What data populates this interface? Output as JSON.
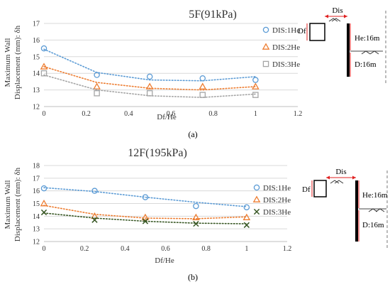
{
  "panels": [
    {
      "caption": "(a)",
      "chart_data": {
        "type": "scatter",
        "title": "5F(91kPa)",
        "xlabel": "Df/He",
        "ylabel_line1": "Maximum Wall",
        "ylabel_line2": "Displacement (mm): δh",
        "xlim": [
          0,
          1.2
        ],
        "ylim": [
          12,
          17
        ],
        "xticks": [
          "0",
          "0.2",
          "0.4",
          "0.6",
          "0.8",
          "1",
          "1.2"
        ],
        "yticks": [
          "12",
          "13",
          "14",
          "15",
          "16",
          "17"
        ],
        "grid": "horizontal",
        "legend_position": "right",
        "x": [
          0,
          0.25,
          0.5,
          0.75,
          1.0
        ],
        "series": [
          {
            "name": "DIS:1He",
            "marker": "circle",
            "color": "#5b9bd5",
            "values": [
              15.5,
              13.9,
              13.8,
              13.7,
              13.6
            ],
            "trend": [
              15.45,
              14.05,
              13.6,
              13.55,
              13.8
            ]
          },
          {
            "name": "DIS:2He",
            "marker": "triangle",
            "color": "#ed7d31",
            "values": [
              14.4,
              13.2,
              13.2,
              13.2,
              13.2
            ],
            "trend": [
              14.4,
              13.45,
              13.1,
              13.0,
              13.2
            ]
          },
          {
            "name": "DIS:3He",
            "marker": "square",
            "color": "#a5a5a5",
            "values": [
              14.0,
              12.8,
              12.8,
              12.7,
              12.7
            ],
            "trend": [
              13.9,
              13.0,
              12.65,
              12.55,
              12.75
            ]
          }
        ]
      },
      "diagram": {
        "dis": "Dis",
        "df": "Df",
        "he": "He:16m",
        "d": "D:16m"
      }
    },
    {
      "caption": "(b)",
      "chart_data": {
        "type": "scatter",
        "title": "12F(195kPa)",
        "xlabel": "Df/He",
        "ylabel_line1": "Maximum Wall",
        "ylabel_line2": "Displacement (mm): δh",
        "xlim": [
          0,
          1.2
        ],
        "ylim": [
          12,
          18
        ],
        "xticks": [
          "0",
          "0.2",
          "0.4",
          "0.6",
          "0.8",
          "1",
          "1.2"
        ],
        "yticks": [
          "12",
          "13",
          "14",
          "15",
          "16",
          "17",
          "18"
        ],
        "grid": "horizontal",
        "legend_position": "right",
        "x": [
          0,
          0.25,
          0.5,
          0.75,
          1.0
        ],
        "series": [
          {
            "name": "DIS:1He",
            "marker": "circle",
            "color": "#5b9bd5",
            "values": [
              16.2,
              16.0,
              15.5,
              14.8,
              14.7
            ],
            "trend": [
              16.25,
              15.95,
              15.5,
              15.1,
              14.75
            ]
          },
          {
            "name": "DIS:2He",
            "marker": "triangle",
            "color": "#ed7d31",
            "values": [
              15.0,
              14.0,
              13.9,
              13.9,
              13.9
            ],
            "trend": [
              14.85,
              14.15,
              13.85,
              13.8,
              13.95
            ]
          },
          {
            "name": "DIS:3He",
            "marker": "x",
            "color": "#375623",
            "values": [
              14.3,
              13.7,
              13.6,
              13.4,
              13.3
            ],
            "trend": [
              14.25,
              13.85,
              13.6,
              13.45,
              13.4
            ]
          }
        ]
      },
      "diagram": {
        "dis": "Dis",
        "df": "Df",
        "he": "He:16m",
        "d": "D:16m"
      }
    }
  ]
}
